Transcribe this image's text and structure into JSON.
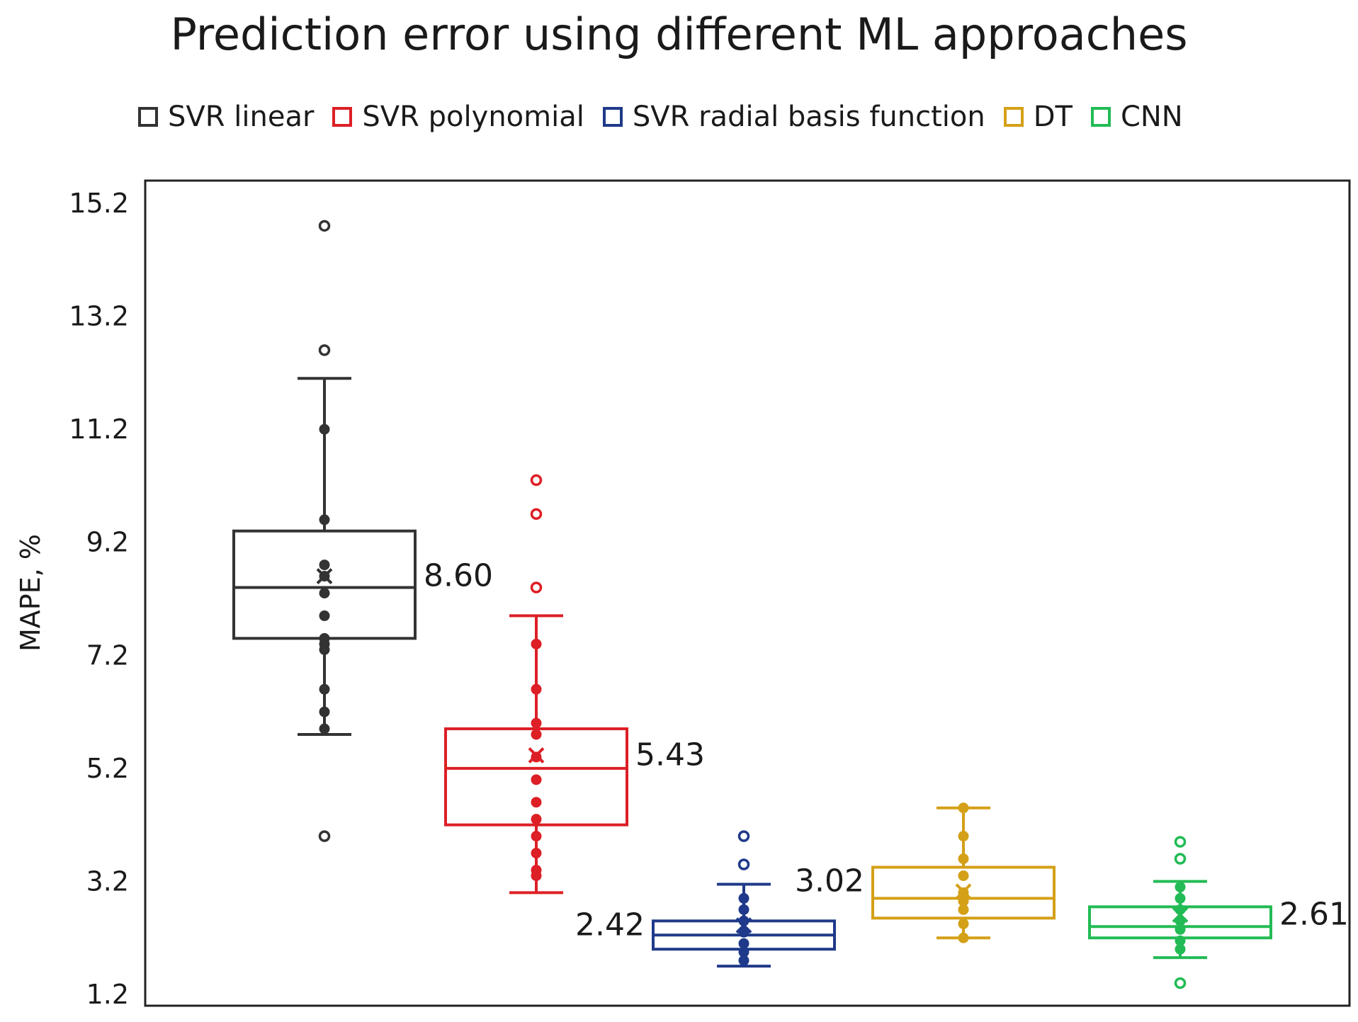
{
  "chart_data": {
    "type": "box",
    "title": "Prediction error using different ML approaches",
    "ylabel": "MAPE, %",
    "xlabel": "",
    "ylim": [
      1.2,
      15.2
    ],
    "yticks": [
      "1.2",
      "3.2",
      "5.2",
      "7.2",
      "9.2",
      "11.2",
      "13.2",
      "15.2"
    ],
    "series": [
      {
        "name": "SVR linear",
        "color": "#333333",
        "q1": 7.5,
        "median": 8.4,
        "q3": 9.4,
        "whisker_low": 5.8,
        "whisker_high": 12.1,
        "mean": 8.6,
        "mean_label": "8.60",
        "label_side": "right",
        "points": [
          11.2,
          9.6,
          8.8,
          8.6,
          8.3,
          7.9,
          7.5,
          7.4,
          7.3,
          6.6,
          6.2,
          5.9
        ],
        "outliers": [
          14.8,
          12.6,
          4.0
        ]
      },
      {
        "name": "SVR polynomial",
        "color": "#dd1f26",
        "q1": 4.2,
        "median": 5.2,
        "q3": 5.9,
        "whisker_low": 3.0,
        "whisker_high": 7.9,
        "mean": 5.43,
        "mean_label": "5.43",
        "label_side": "right",
        "points": [
          7.4,
          6.6,
          6.0,
          5.8,
          5.4,
          5.0,
          4.6,
          4.3,
          4.0,
          3.7,
          3.4,
          3.3
        ],
        "outliers": [
          10.3,
          9.7,
          8.4
        ]
      },
      {
        "name": "SVR radial basis function",
        "color": "#1f3a8a",
        "q1": 2.0,
        "median": 2.25,
        "q3": 2.5,
        "whisker_low": 1.7,
        "whisker_high": 3.15,
        "mean": 2.42,
        "mean_label": "2.42",
        "label_side": "left",
        "points": [
          2.9,
          2.7,
          2.5,
          2.3,
          2.1,
          1.95,
          1.8
        ],
        "outliers": [
          4.0,
          3.5
        ]
      },
      {
        "name": "DT",
        "color": "#d4a017",
        "q1": 2.55,
        "median": 2.9,
        "q3": 3.45,
        "whisker_low": 2.2,
        "whisker_high": 4.5,
        "mean": 3.02,
        "mean_label": "3.02",
        "label_side": "left",
        "points": [
          4.5,
          4.0,
          3.6,
          3.3,
          3.0,
          2.85,
          2.7,
          2.45,
          2.2
        ],
        "outliers": []
      },
      {
        "name": "CNN",
        "color": "#22bb55",
        "q1": 2.2,
        "median": 2.4,
        "q3": 2.75,
        "whisker_low": 1.85,
        "whisker_high": 3.2,
        "mean": 2.61,
        "mean_label": "2.61",
        "label_side": "right",
        "points": [
          3.1,
          2.9,
          2.7,
          2.5,
          2.35,
          2.15,
          2.0
        ],
        "outliers": [
          3.9,
          3.6,
          1.4
        ]
      }
    ]
  }
}
